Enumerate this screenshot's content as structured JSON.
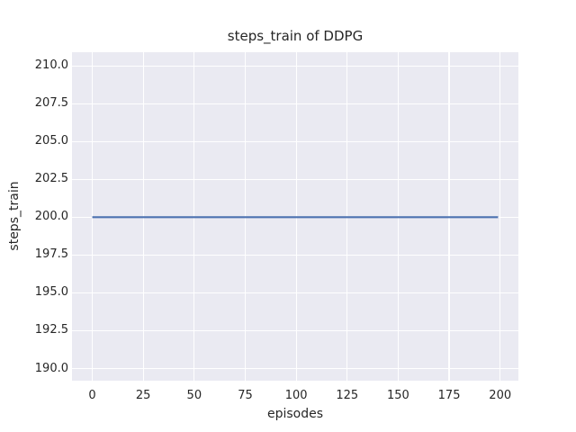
{
  "chart_data": {
    "type": "line",
    "title": "steps_train of DDPG",
    "xlabel": "episodes",
    "ylabel": "steps_train",
    "style": "seaborn-darkgrid",
    "grid": true,
    "legend_position": "none",
    "xlim": [
      -9.95,
      208.95
    ],
    "ylim": [
      189.2,
      210.9
    ],
    "xticks": [
      0,
      25,
      50,
      75,
      100,
      125,
      150,
      175,
      200
    ],
    "xtick_labels": [
      "0",
      "25",
      "50",
      "75",
      "100",
      "125",
      "150",
      "175",
      "200"
    ],
    "yticks": [
      190.0,
      192.5,
      195.0,
      197.5,
      200.0,
      202.5,
      205.0,
      207.5,
      210.0
    ],
    "ytick_labels": [
      "190.0",
      "192.5",
      "195.0",
      "197.5",
      "200.0",
      "202.5",
      "205.0",
      "207.5",
      "210.0"
    ],
    "series": [
      {
        "name": "steps_train",
        "color": "#4c72b0",
        "line_width": 2.1,
        "y_constant": 200,
        "points": [
          [
            0,
            200
          ],
          [
            199,
            200
          ]
        ]
      }
    ],
    "colors": {
      "figure_background": "#ffffff",
      "plot_background": "#eaeaf2",
      "gridline": "#ffffff",
      "text": "#262626"
    }
  }
}
